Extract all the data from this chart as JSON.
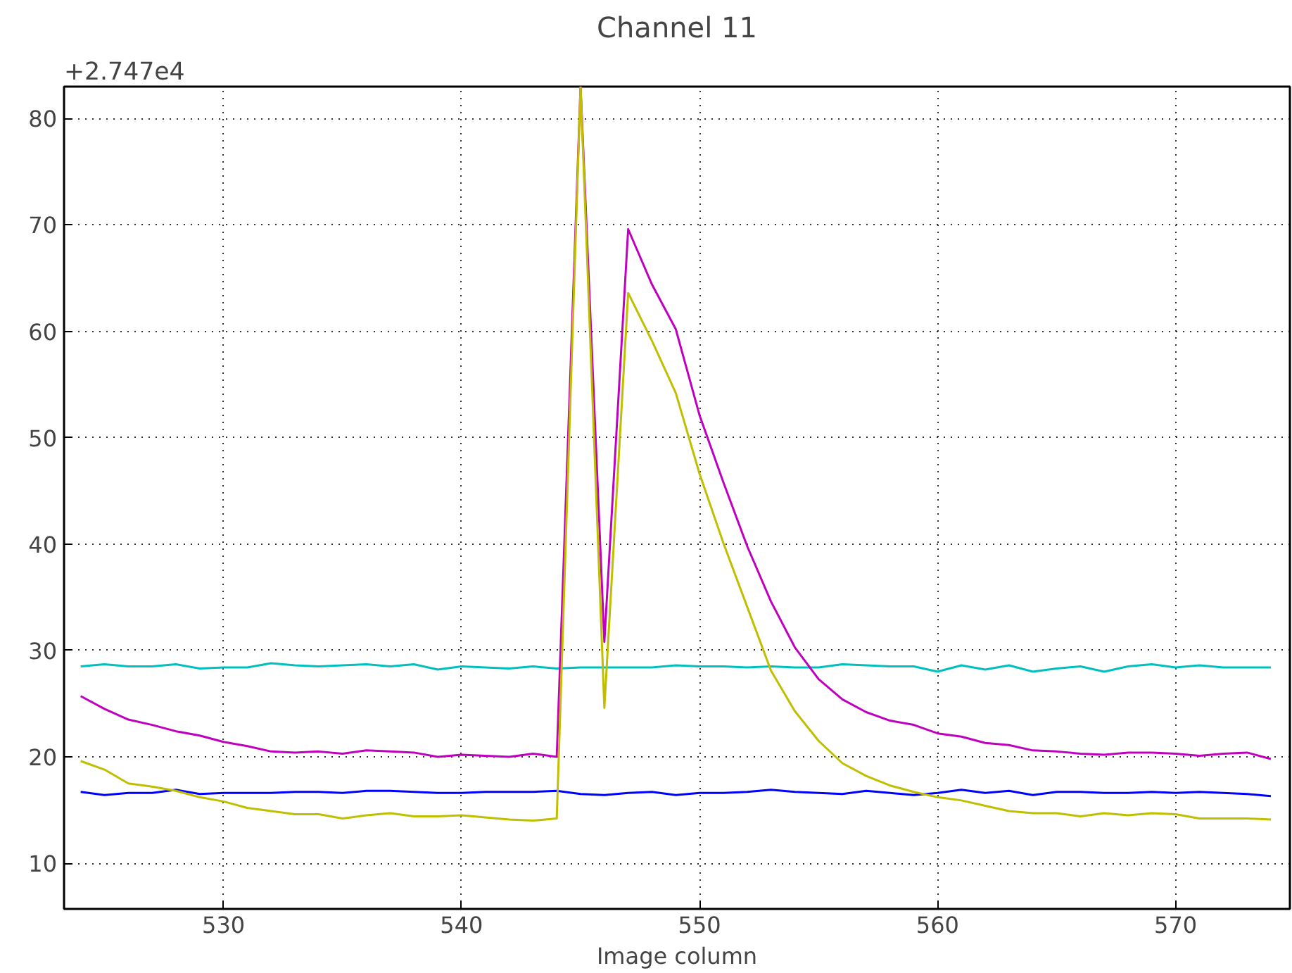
{
  "chart_data": {
    "type": "line",
    "title": "Channel 11",
    "xlabel": "Image column",
    "annotations": [
      "+2.747e4"
    ],
    "x": [
      524,
      525,
      526,
      527,
      528,
      529,
      530,
      531,
      532,
      533,
      534,
      535,
      536,
      537,
      538,
      539,
      540,
      541,
      542,
      543,
      544,
      545,
      546,
      547,
      548,
      549,
      550,
      551,
      552,
      553,
      554,
      555,
      556,
      557,
      558,
      559,
      560,
      561,
      562,
      563,
      564,
      565,
      566,
      567,
      568,
      569,
      570,
      571,
      572,
      573,
      574
    ],
    "series": [
      {
        "color": "#00bfbf",
        "values": [
          28.5,
          28.7,
          28.5,
          28.5,
          28.7,
          28.3,
          28.4,
          28.4,
          28.8,
          28.6,
          28.5,
          28.6,
          28.7,
          28.5,
          28.7,
          28.2,
          28.5,
          28.4,
          28.3,
          28.5,
          28.3,
          28.4,
          28.4,
          28.4,
          28.4,
          28.6,
          28.5,
          28.5,
          28.4,
          28.5,
          28.4,
          28.4,
          28.7,
          28.6,
          28.5,
          28.5,
          28.0,
          28.6,
          28.2,
          28.6,
          28.0,
          28.3,
          28.5,
          28.0,
          28.5,
          28.7,
          28.4,
          28.6,
          28.4,
          28.4,
          28.4
        ]
      },
      {
        "color": "#0000ff",
        "values": [
          16.7,
          16.4,
          16.6,
          16.6,
          16.9,
          16.5,
          16.6,
          16.6,
          16.6,
          16.7,
          16.7,
          16.6,
          16.8,
          16.8,
          16.7,
          16.6,
          16.6,
          16.7,
          16.7,
          16.7,
          16.8,
          16.5,
          16.4,
          16.6,
          16.7,
          16.4,
          16.6,
          16.6,
          16.7,
          16.9,
          16.7,
          16.6,
          16.5,
          16.8,
          16.6,
          16.4,
          16.6,
          16.9,
          16.6,
          16.8,
          16.4,
          16.7,
          16.7,
          16.6,
          16.6,
          16.7,
          16.6,
          16.7,
          16.6,
          16.5,
          16.3
        ]
      },
      {
        "color": "#bf00bf",
        "values": [
          25.7,
          24.5,
          23.5,
          23.0,
          22.4,
          22.0,
          21.4,
          21.0,
          20.5,
          20.4,
          20.5,
          20.3,
          20.6,
          20.5,
          20.4,
          20.0,
          20.2,
          20.1,
          20.0,
          20.3,
          20.0,
          83.0,
          30.8,
          69.6,
          64.4,
          60.2,
          52.1,
          45.8,
          39.8,
          34.6,
          30.3,
          27.3,
          25.4,
          24.2,
          23.4,
          23.0,
          22.2,
          21.9,
          21.3,
          21.1,
          20.6,
          20.5,
          20.3,
          20.2,
          20.4,
          20.4,
          20.3,
          20.1,
          20.3,
          20.4,
          19.8
        ]
      },
      {
        "color": "#bfbf00",
        "values": [
          19.6,
          18.8,
          17.5,
          17.2,
          16.8,
          16.2,
          15.8,
          15.2,
          14.9,
          14.6,
          14.6,
          14.2,
          14.5,
          14.7,
          14.4,
          14.4,
          14.5,
          14.3,
          14.1,
          14.0,
          14.2,
          83.0,
          24.6,
          63.6,
          59.1,
          54.2,
          46.6,
          40.1,
          34.1,
          28.1,
          24.3,
          21.5,
          19.4,
          18.2,
          17.3,
          16.7,
          16.2,
          15.9,
          15.4,
          14.9,
          14.7,
          14.7,
          14.4,
          14.7,
          14.5,
          14.7,
          14.6,
          14.2,
          14.2,
          14.2,
          14.1
        ]
      }
    ],
    "xlim": [
      523.3,
      574.8
    ],
    "xticks": [
      530,
      540,
      550,
      560,
      570
    ],
    "ylim": [
      5.7,
      83.0
    ],
    "yticks": [
      10,
      20,
      30,
      40,
      50,
      60,
      70,
      80
    ],
    "grid": true,
    "line_style": "solid"
  }
}
